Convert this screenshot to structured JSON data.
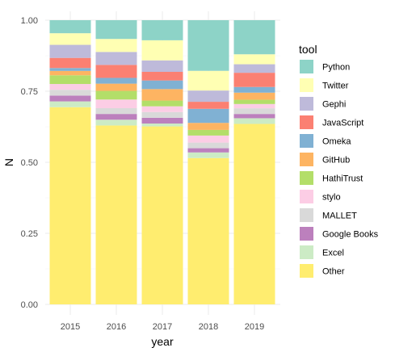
{
  "chart_data": {
    "type": "bar",
    "stacked": true,
    "position": "fill",
    "xlabel": "year",
    "ylabel": "N",
    "ylim": [
      0,
      1
    ],
    "y_ticks": [
      "0.00",
      "0.25",
      "0.50",
      "0.75",
      "1.00"
    ],
    "categories": [
      "2015",
      "2016",
      "2017",
      "2018",
      "2019"
    ],
    "legend": {
      "title": "tool",
      "placement": "right"
    },
    "grid": true,
    "series": [
      {
        "name": "Other",
        "color": "#FFED6F",
        "values": [
          0.68,
          0.62,
          0.62,
          0.52,
          0.635
        ]
      },
      {
        "name": "Excel",
        "color": "#CCEBC5",
        "values": [
          0.02,
          0.02,
          0.01,
          0.02,
          0.02
        ]
      },
      {
        "name": "Google Books",
        "color": "#BC80BD",
        "values": [
          0.02,
          0.02,
          0.02,
          0.015,
          0.015
        ]
      },
      {
        "name": "MALLET",
        "color": "#D9D9D9",
        "values": [
          0.02,
          0.02,
          0.02,
          0.02,
          0.02
        ]
      },
      {
        "name": "stylo",
        "color": "#FCCDE5",
        "values": [
          0.02,
          0.03,
          0.02,
          0.025,
          0.015
        ]
      },
      {
        "name": "HathiTrust",
        "color": "#B3DE69",
        "values": [
          0.03,
          0.03,
          0.02,
          0.02,
          0.015
        ]
      },
      {
        "name": "GitHub",
        "color": "#FDB462",
        "values": [
          0.015,
          0.025,
          0.04,
          0.025,
          0.025
        ]
      },
      {
        "name": "Omeka",
        "color": "#80B1D3",
        "values": [
          0.01,
          0.02,
          0.03,
          0.05,
          0.02
        ]
      },
      {
        "name": "JavaScript",
        "color": "#FB8072",
        "values": [
          0.035,
          0.045,
          0.03,
          0.025,
          0.05
        ]
      },
      {
        "name": "Gephi",
        "color": "#BEBADA",
        "values": [
          0.045,
          0.045,
          0.04,
          0.04,
          0.03
        ]
      },
      {
        "name": "Twitter",
        "color": "#FFFFB3",
        "values": [
          0.04,
          0.045,
          0.07,
          0.07,
          0.035
        ]
      },
      {
        "name": "Python",
        "color": "#8DD3C7",
        "values": [
          0.045,
          0.065,
          0.07,
          0.18,
          0.12
        ]
      }
    ]
  }
}
